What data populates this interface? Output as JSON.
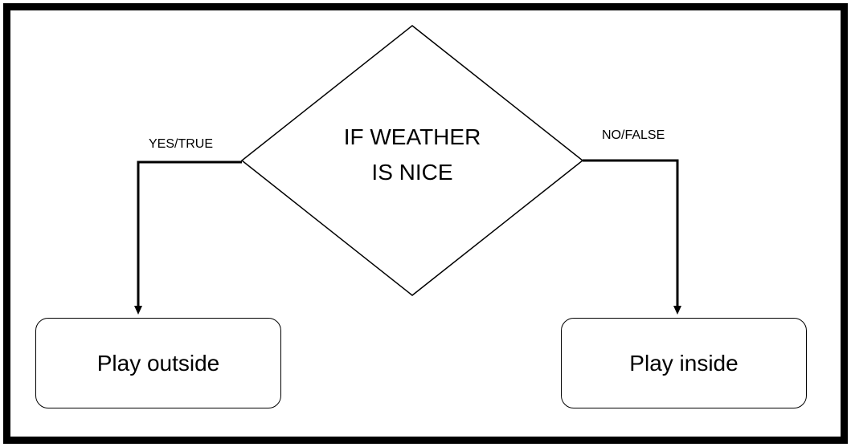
{
  "decision": {
    "line1": "IF WEATHER",
    "line2": "IS NICE"
  },
  "branches": {
    "yes_label": "YES/TRUE",
    "no_label": "NO/FALSE"
  },
  "outcomes": {
    "left": "Play outside",
    "right": "Play inside"
  },
  "colors": {
    "stroke": "#000000",
    "background": "#ffffff"
  }
}
